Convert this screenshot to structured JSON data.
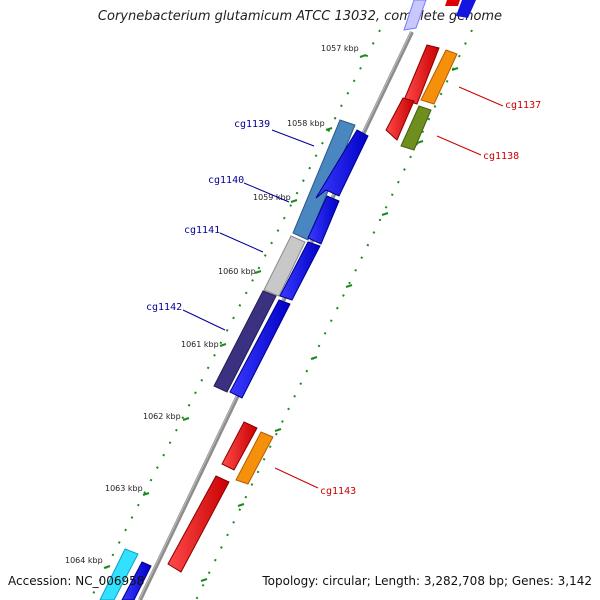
{
  "title": "Corynebacterium glutamicum ATCC 13032, complete genome",
  "footer": {
    "accession": "Accession: NC_006958",
    "summary": "Topology: circular; Length: 3,282,708 bp; Genes: 3,142"
  },
  "colors": {
    "backbone": "#8c8c8c",
    "tick_minor": "#1c8a1c",
    "label_forward": "#cc0000",
    "label_reverse": "#000099"
  },
  "tick_labels": [
    "1057 kbp",
    "1058 kbp",
    "1059 kbp",
    "1060 kbp",
    "1061 kbp",
    "1062 kbp",
    "1063 kbp",
    "1064 kbp"
  ],
  "gene_labels": [
    {
      "id": "cg1137",
      "color": "#cc0000"
    },
    {
      "id": "cg1138",
      "color": "#cc0000"
    },
    {
      "id": "cg1139",
      "color": "#000099"
    },
    {
      "id": "cg1140",
      "color": "#000099"
    },
    {
      "id": "cg1141",
      "color": "#000099"
    },
    {
      "id": "cg1142",
      "color": "#000099"
    },
    {
      "id": "cg1143",
      "color": "#cc0000"
    }
  ]
}
